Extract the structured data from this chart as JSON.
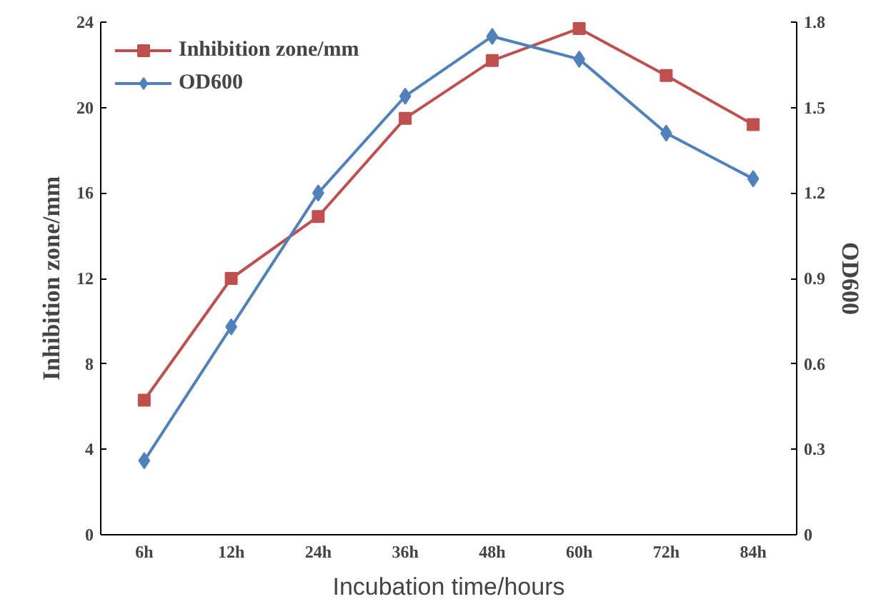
{
  "chart_data": {
    "type": "line",
    "xlabel": "Incubation time/hours",
    "ylabel": "Inhibition zone/mm",
    "y2label": "OD600",
    "categories": [
      "6h",
      "12h",
      "24h",
      "36h",
      "48h",
      "60h",
      "72h",
      "84h"
    ],
    "series": [
      {
        "name": "Inhibition zone/mm",
        "color": "#c0504d",
        "marker": "square",
        "values": [
          6.3,
          12.0,
          14.9,
          19.5,
          22.2,
          23.7,
          21.5,
          19.2
        ]
      },
      {
        "name": "OD600",
        "color": "#4f81bd",
        "marker": "diamond",
        "axis": "y2",
        "values": [
          0.26,
          0.73,
          1.2,
          1.54,
          1.75,
          1.67,
          1.41,
          1.25
        ]
      }
    ],
    "ylim": [
      0,
      24
    ],
    "yticks": [
      0,
      4,
      8,
      12,
      16,
      20,
      24
    ],
    "y2lim": [
      0,
      1.8
    ],
    "y2ticks": [
      0,
      0.3,
      0.6,
      0.9,
      1.2,
      1.5,
      1.8
    ],
    "grid": false,
    "legend": "top left",
    "line_style": "solid"
  }
}
